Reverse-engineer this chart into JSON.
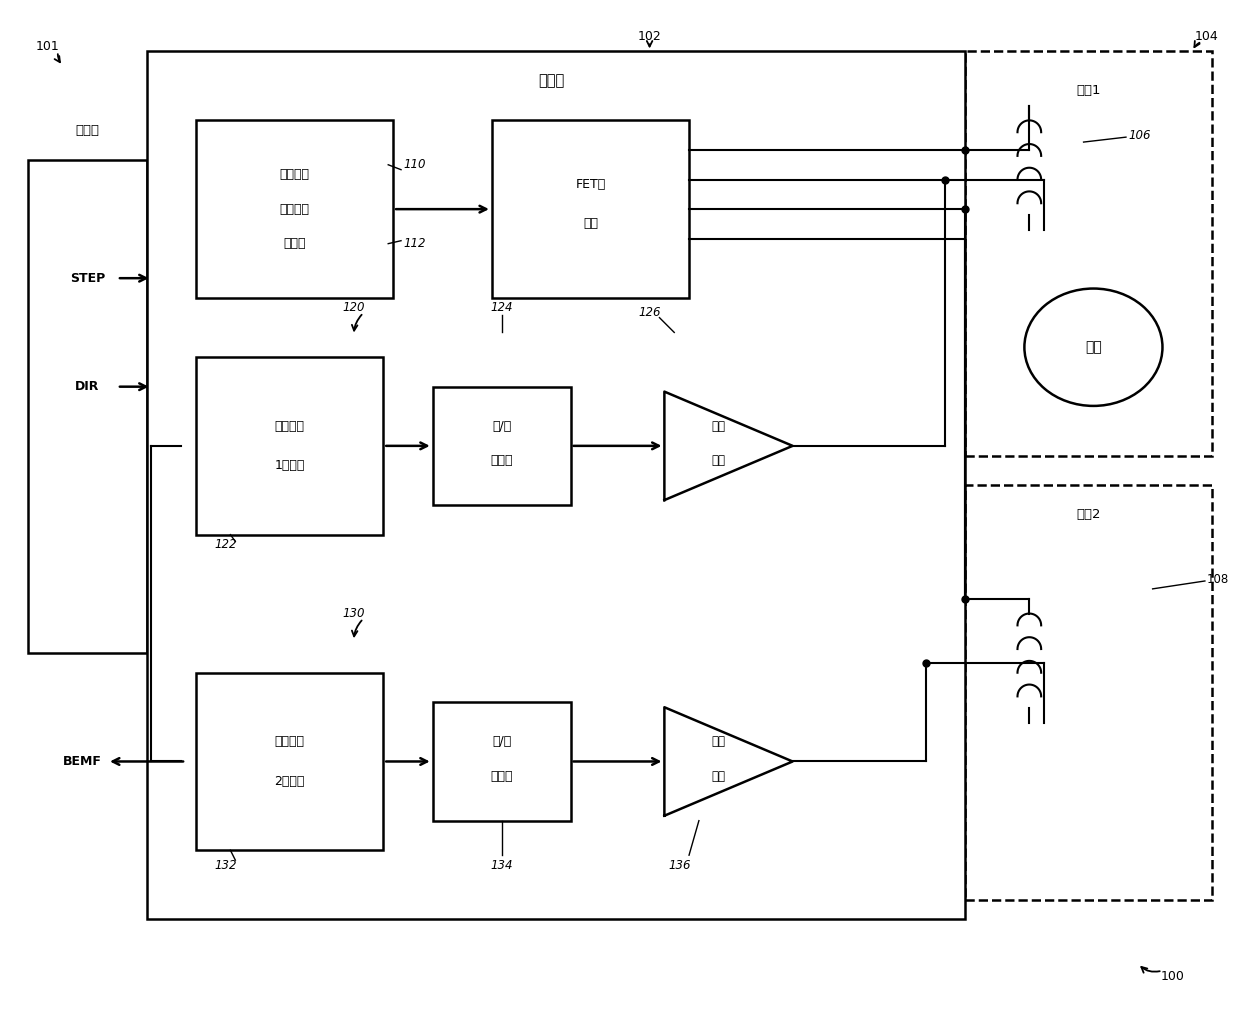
{
  "bg_color": "#ffffff",
  "line_color": "#000000",
  "fig_width": 12.4,
  "fig_height": 10.15,
  "labels": {
    "controller": "控制器",
    "driver": "驱动器",
    "coil1": "线圈1",
    "coil2": "线圈2",
    "motor": "电机",
    "step": "STEP",
    "dir": "DIR",
    "bemf": "BEMF",
    "current_chopper_1": "电流斩波",
    "current_chopper_2": "器脉冲宽",
    "current_chopper_3": "度调制",
    "fet_driver_1": "FET驱",
    "fet_driver_2": "动器",
    "bemf1_monitor_1": "反电动势",
    "bemf1_monitor_2": "1监测器",
    "adc1_1": "模/数",
    "adc1_2": "转换器",
    "analog1_1": "模拟",
    "analog1_2": "前端",
    "bemf2_monitor_1": "反电动势",
    "bemf2_monitor_2": "2监测器",
    "adc2_1": "模/数",
    "adc2_2": "转换器",
    "analog2_1": "模拟",
    "analog2_2": "前端",
    "n100": "100",
    "n101": "101",
    "n102": "102",
    "n104": "104",
    "n106": "106",
    "n108": "108",
    "n110": "110",
    "n112": "112",
    "n120": "120",
    "n122": "122",
    "n124": "124",
    "n126": "126",
    "n130": "130",
    "n132": "132",
    "n134": "134",
    "n136": "136"
  }
}
